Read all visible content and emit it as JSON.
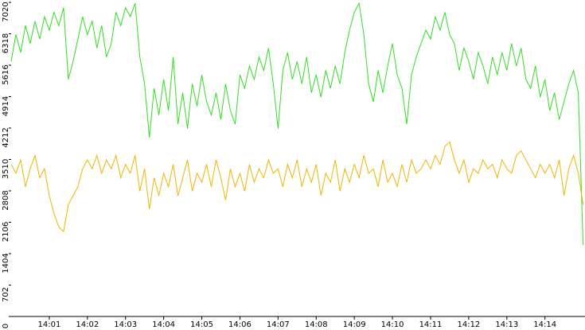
{
  "chart_data": {
    "type": "line",
    "x": [
      0,
      0.125,
      0.25,
      0.375,
      0.5,
      0.625,
      0.75,
      0.875,
      1,
      1.125,
      1.25,
      1.375,
      1.5,
      1.625,
      1.75,
      1.875,
      2,
      2.125,
      2.25,
      2.375,
      2.5,
      2.625,
      2.75,
      2.875,
      3,
      3.125,
      3.25,
      3.375,
      3.5,
      3.625,
      3.75,
      3.875,
      4,
      4.125,
      4.25,
      4.375,
      4.5,
      4.625,
      4.75,
      4.875,
      5,
      5.125,
      5.25,
      5.375,
      5.5,
      5.625,
      5.75,
      5.875,
      6,
      6.125,
      6.25,
      6.375,
      6.5,
      6.625,
      6.75,
      6.875,
      7,
      7.125,
      7.25,
      7.375,
      7.5,
      7.625,
      7.75,
      7.875,
      8,
      8.125,
      8.25,
      8.375,
      8.5,
      8.625,
      8.75,
      8.875,
      9,
      9.125,
      9.25,
      9.375,
      9.5,
      9.625,
      9.75,
      9.875,
      10,
      10.125,
      10.25,
      10.375,
      10.5,
      10.625,
      10.75,
      10.875,
      11,
      11.125,
      11.25,
      11.375,
      11.5,
      11.625,
      11.75,
      11.875,
      12,
      12.125,
      12.25,
      12.375,
      12.5,
      12.625,
      12.75,
      12.875,
      13,
      13.125,
      13.25,
      13.375,
      13.5,
      13.625,
      13.75,
      13.875,
      14,
      14.125,
      14.25,
      14.375,
      14.5,
      14.625,
      14.75,
      14.875,
      15
    ],
    "series": [
      {
        "color": "#33dd22",
        "values": [
          5700,
          6300,
          5900,
          6500,
          6100,
          6600,
          6200,
          6700,
          6400,
          6800,
          6500,
          6900,
          5300,
          5700,
          6200,
          6700,
          6300,
          6600,
          6000,
          6500,
          5800,
          6100,
          6800,
          6500,
          6900,
          6700,
          7000,
          5800,
          5200,
          4000,
          5100,
          4500,
          5300,
          4600,
          5800,
          4300,
          5000,
          4200,
          5200,
          4700,
          5400,
          4800,
          4500,
          5000,
          4400,
          5200,
          4600,
          4300,
          5400,
          5100,
          5600,
          5300,
          5800,
          5500,
          6000,
          5200,
          4200,
          5500,
          5900,
          5300,
          5700,
          5200,
          5800,
          5000,
          5400,
          4900,
          5500,
          5100,
          5600,
          5200,
          5900,
          6400,
          6800,
          7000,
          6300,
          5200,
          4800,
          5500,
          5000,
          5600,
          6100,
          5400,
          5100,
          4300,
          5400,
          5800,
          6100,
          6400,
          6200,
          6700,
          6400,
          6800,
          6300,
          6100,
          5500,
          6000,
          5700,
          5300,
          5900,
          5600,
          5200,
          5800,
          5400,
          5900,
          5500,
          6100,
          5600,
          6000,
          5300,
          5100,
          5600,
          4900,
          5300,
          4600,
          5000,
          4400,
          4800,
          5200,
          5500,
          5000,
          1600
        ]
      },
      {
        "color": "#f0b400",
        "values": [
          3400,
          3200,
          3500,
          2900,
          3300,
          3600,
          3100,
          3300,
          2700,
          2300,
          2000,
          1900,
          2500,
          2700,
          2900,
          3300,
          3500,
          3300,
          3600,
          3200,
          3500,
          3300,
          3600,
          3100,
          3400,
          3200,
          3600,
          2800,
          3300,
          2400,
          3100,
          2700,
          3200,
          2900,
          3400,
          2700,
          3100,
          3500,
          2800,
          3200,
          3000,
          3400,
          2900,
          3500,
          3100,
          2600,
          3300,
          2900,
          3200,
          2800,
          3400,
          3000,
          3300,
          3100,
          3500,
          3200,
          3300,
          2900,
          3400,
          3100,
          3500,
          2900,
          3300,
          3000,
          3400,
          2700,
          3200,
          3000,
          3500,
          2800,
          3300,
          3000,
          3400,
          3100,
          3600,
          3200,
          3300,
          2900,
          3500,
          3000,
          3200,
          2900,
          3400,
          3000,
          3500,
          3200,
          3300,
          3500,
          3300,
          3600,
          3400,
          3800,
          3900,
          3500,
          3200,
          3500,
          3000,
          3300,
          3200,
          3500,
          3300,
          3400,
          3100,
          3500,
          3300,
          3200,
          3600,
          3700,
          3500,
          3300,
          3100,
          3400,
          3200,
          3400,
          3100,
          3500,
          2700,
          3300,
          3600,
          3200,
          2500
        ]
      }
    ],
    "xlim": [
      0,
      15.05
    ],
    "xticks": [
      {
        "value": 1,
        "label": "14:01"
      },
      {
        "value": 2,
        "label": "14:02"
      },
      {
        "value": 3,
        "label": "14:03"
      },
      {
        "value": 4,
        "label": "14:04"
      },
      {
        "value": 5,
        "label": "14:05"
      },
      {
        "value": 6,
        "label": "14:06"
      },
      {
        "value": 7,
        "label": "14:07"
      },
      {
        "value": 8,
        "label": "14:08"
      },
      {
        "value": 9,
        "label": "14:09"
      },
      {
        "value": 10,
        "label": "14:10"
      },
      {
        "value": 11,
        "label": "14:11"
      },
      {
        "value": 12,
        "label": "14:12"
      },
      {
        "value": 13,
        "label": "14:13"
      },
      {
        "value": 14,
        "label": "14:14"
      }
    ],
    "ylim": [
      0,
      7020
    ],
    "yticks": [
      0,
      702,
      1404,
      2106,
      2808,
      3510,
      4212,
      4914,
      5616,
      6318,
      7020
    ]
  }
}
